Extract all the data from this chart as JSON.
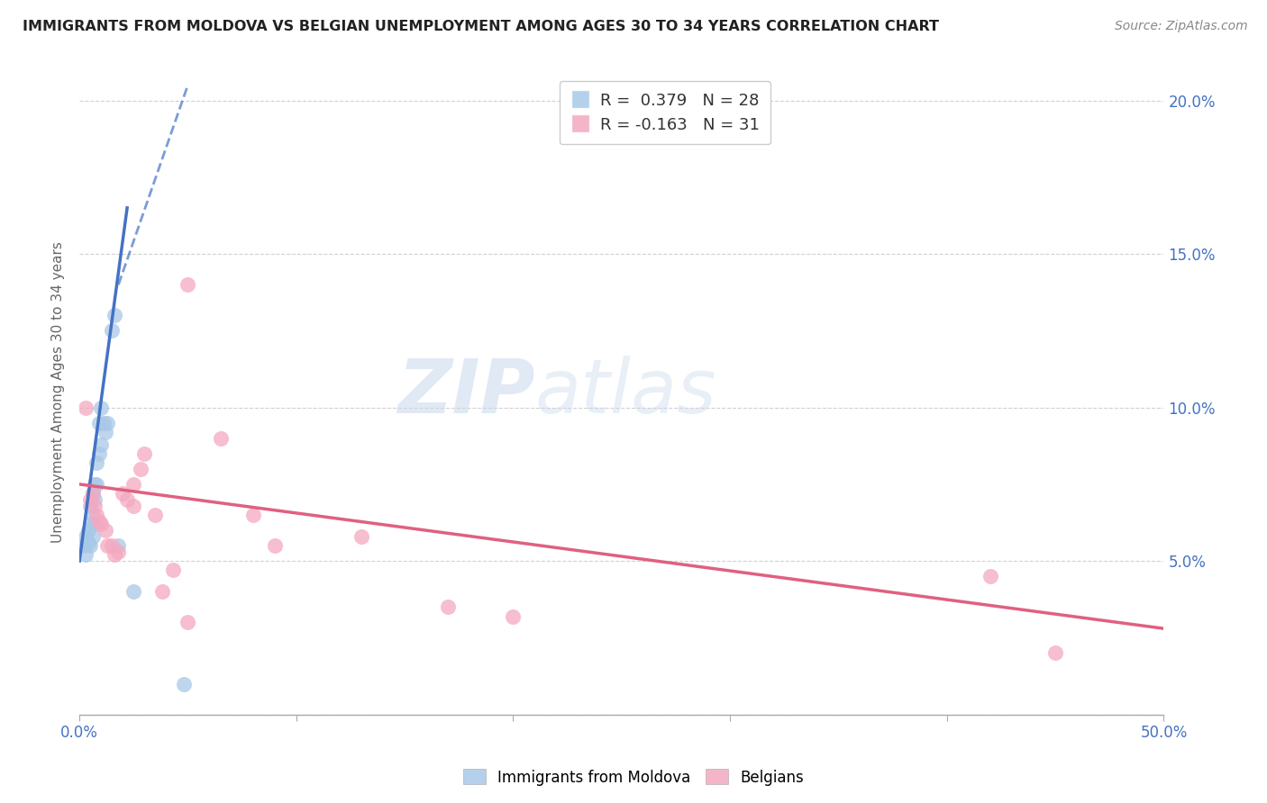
{
  "title": "IMMIGRANTS FROM MOLDOVA VS BELGIAN UNEMPLOYMENT AMONG AGES 30 TO 34 YEARS CORRELATION CHART",
  "source": "Source: ZipAtlas.com",
  "ylabel": "Unemployment Among Ages 30 to 34 years",
  "xlim": [
    0.0,
    0.5
  ],
  "ylim": [
    0.0,
    0.21
  ],
  "xtick_positions": [
    0.0,
    0.1,
    0.2,
    0.3,
    0.4,
    0.5
  ],
  "xtick_labels_show": {
    "0.0": "0.0%",
    "0.5": "50.0%"
  },
  "yticks": [
    0.0,
    0.05,
    0.1,
    0.15,
    0.2
  ],
  "ytick_labels_right": [
    "",
    "5.0%",
    "10.0%",
    "15.0%",
    "20.0%"
  ],
  "legend1_label": "Immigrants from Moldova",
  "legend2_label": "Belgians",
  "R_blue": 0.379,
  "N_blue": 28,
  "R_pink": -0.163,
  "N_pink": 31,
  "blue_color": "#a8c8e8",
  "pink_color": "#f4a8c0",
  "blue_line_color": "#4472c4",
  "pink_line_color": "#e06080",
  "watermark_zip": "ZIP",
  "watermark_atlas": "atlas",
  "blue_scatter_x": [
    0.002,
    0.003,
    0.003,
    0.004,
    0.004,
    0.005,
    0.005,
    0.005,
    0.006,
    0.006,
    0.006,
    0.007,
    0.007,
    0.007,
    0.008,
    0.008,
    0.009,
    0.009,
    0.01,
    0.01,
    0.011,
    0.012,
    0.013,
    0.015,
    0.016,
    0.018,
    0.025,
    0.048
  ],
  "blue_scatter_y": [
    0.055,
    0.052,
    0.058,
    0.056,
    0.06,
    0.055,
    0.062,
    0.068,
    0.058,
    0.065,
    0.072,
    0.062,
    0.07,
    0.075,
    0.075,
    0.082,
    0.085,
    0.095,
    0.088,
    0.1,
    0.095,
    0.092,
    0.095,
    0.125,
    0.13,
    0.055,
    0.04,
    0.01
  ],
  "pink_scatter_x": [
    0.003,
    0.005,
    0.006,
    0.007,
    0.008,
    0.009,
    0.01,
    0.012,
    0.013,
    0.015,
    0.016,
    0.018,
    0.02,
    0.022,
    0.025,
    0.025,
    0.028,
    0.03,
    0.035,
    0.038,
    0.043,
    0.05,
    0.05,
    0.065,
    0.08,
    0.09,
    0.13,
    0.17,
    0.2,
    0.42,
    0.45
  ],
  "pink_scatter_y": [
    0.1,
    0.07,
    0.072,
    0.068,
    0.065,
    0.063,
    0.062,
    0.06,
    0.055,
    0.055,
    0.052,
    0.053,
    0.072,
    0.07,
    0.075,
    0.068,
    0.08,
    0.085,
    0.065,
    0.04,
    0.047,
    0.03,
    0.14,
    0.09,
    0.065,
    0.055,
    0.058,
    0.035,
    0.032,
    0.045,
    0.02
  ],
  "blue_line_x0": 0.0,
  "blue_line_x1": 0.05,
  "blue_line_y0": 0.05,
  "blue_line_y1": 0.205,
  "pink_line_x0": 0.0,
  "pink_line_x1": 0.5,
  "pink_line_y0": 0.075,
  "pink_line_y1": 0.028
}
